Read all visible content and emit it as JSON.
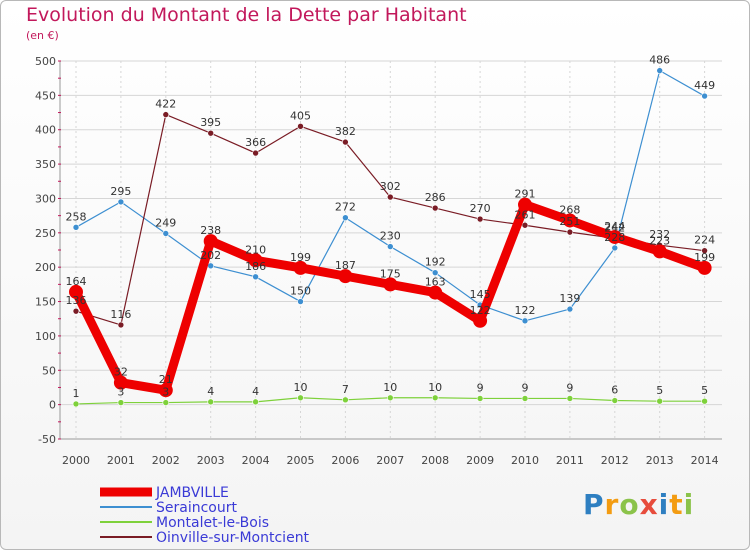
{
  "title": "Evolution du Montant de la Dette par Habitant",
  "unit_label": "(en €)",
  "logo": {
    "letters": [
      "P",
      "r",
      "o",
      "x",
      "i",
      "t",
      "i"
    ],
    "colors": [
      "#2e7fc1",
      "#f39c12",
      "#8bc34a",
      "#e74c3c",
      "#2e7fc1",
      "#f39c12",
      "#8bc34a"
    ]
  },
  "chart_data": {
    "type": "line",
    "title": "Evolution du Montant de la Dette par Habitant",
    "ylabel": "(en €)",
    "xlabel": "",
    "x": [
      "2000",
      "2001",
      "2002",
      "2003",
      "2004",
      "2005",
      "2006",
      "2007",
      "2008",
      "2009",
      "2010",
      "2011",
      "2012",
      "2013",
      "2014"
    ],
    "ylim": [
      -50,
      500
    ],
    "yticks": [
      -50,
      0,
      50,
      100,
      150,
      200,
      250,
      300,
      350,
      400,
      450,
      500
    ],
    "grid": true,
    "legend_position": "bottom-left",
    "series": [
      {
        "name": "JAMBVILLE",
        "color": "#ee0000",
        "emphasis": true,
        "values": [
          164,
          32,
          21,
          238,
          210,
          199,
          187,
          175,
          163,
          122,
          291,
          268,
          244,
          223,
          199
        ]
      },
      {
        "name": "Seraincourt",
        "color": "#3d8fd1",
        "values": [
          258,
          295,
          249,
          202,
          186,
          150,
          272,
          230,
          192,
          145,
          122,
          139,
          228,
          486,
          449
        ]
      },
      {
        "name": "Montalet-le-Bois",
        "color": "#7ed13b",
        "values": [
          1,
          3,
          3,
          4,
          4,
          10,
          7,
          10,
          10,
          9,
          9,
          9,
          6,
          5,
          5
        ]
      },
      {
        "name": "Oinville-sur-Montcient",
        "color": "#7a1c25",
        "values": [
          136,
          116,
          422,
          395,
          366,
          405,
          382,
          302,
          286,
          270,
          261,
          251,
          242,
          232,
          224
        ]
      }
    ]
  }
}
